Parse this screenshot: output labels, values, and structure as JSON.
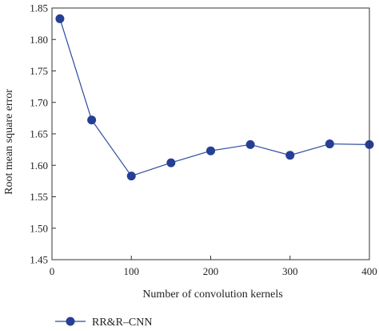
{
  "chart_data": {
    "type": "line",
    "xlabel": "Number of convolution kernels",
    "ylabel": "Root mean square error",
    "xlim": [
      0,
      400
    ],
    "ylim": [
      1.45,
      1.85
    ],
    "x_ticks": [
      0,
      100,
      200,
      300,
      400
    ],
    "y_ticks": [
      1.45,
      1.5,
      1.55,
      1.6,
      1.65,
      1.7,
      1.75,
      1.8,
      1.85
    ],
    "x_tick_labels": [
      "0",
      "100",
      "200",
      "300",
      "400"
    ],
    "y_tick_labels": [
      "1.45",
      "1.50",
      "1.55",
      "1.60",
      "1.65",
      "1.70",
      "1.75",
      "1.80",
      "1.85"
    ],
    "grid": false,
    "legend_position": "bottom-left",
    "series": [
      {
        "name": "RR&R–CNN",
        "color": "#2e4a9e",
        "marker_color": "#253f94",
        "x": [
          10,
          50,
          100,
          150,
          200,
          250,
          300,
          350,
          400
        ],
        "y": [
          1.833,
          1.672,
          1.583,
          1.604,
          1.623,
          1.633,
          1.616,
          1.634,
          1.633
        ]
      }
    ]
  }
}
